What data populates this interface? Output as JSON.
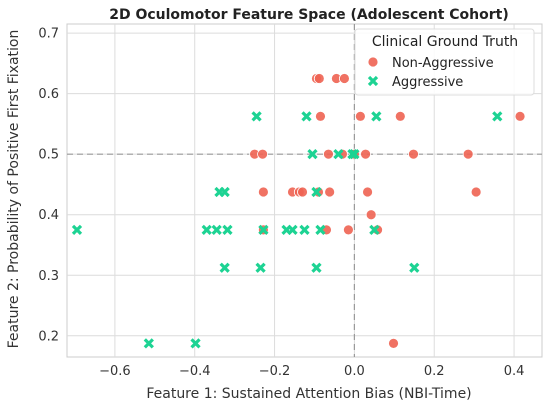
{
  "chart_data": {
    "type": "scatter",
    "title": "2D Oculomotor Feature Space (Adolescent Cohort)",
    "xlabel": "Feature 1: Sustained Attention Bias (NBI-Time)",
    "ylabel": "Feature 2: Probability of Positive First Fixation",
    "xlim": [
      -0.72,
      0.47
    ],
    "ylim": [
      0.165,
      0.715
    ],
    "xticks": [
      -0.6,
      -0.4,
      -0.2,
      0.0,
      0.2,
      0.4
    ],
    "xtick_labels": [
      "−0.6",
      "−0.4",
      "−0.2",
      "0.0",
      "0.2",
      "0.4"
    ],
    "yticks": [
      0.2,
      0.3,
      0.4,
      0.5,
      0.6,
      0.7
    ],
    "ytick_labels": [
      "0.2",
      "0.3",
      "0.4",
      "0.5",
      "0.6",
      "0.7"
    ],
    "grid": true,
    "reference_lines": {
      "x": 0.0,
      "y": 0.5
    },
    "legend": {
      "title": "Clinical Ground Truth",
      "placement": "top-right"
    },
    "series": [
      {
        "name": "Non-Aggressive",
        "marker": "circle",
        "color": "#ee6352",
        "points": [
          [
            -0.095,
            0.625
          ],
          [
            -0.088,
            0.625
          ],
          [
            -0.045,
            0.625
          ],
          [
            -0.025,
            0.625
          ],
          [
            -0.085,
            0.5625
          ],
          [
            0.015,
            0.5625
          ],
          [
            0.115,
            0.5625
          ],
          [
            0.415,
            0.5625
          ],
          [
            -0.25,
            0.5
          ],
          [
            -0.23,
            0.5
          ],
          [
            -0.065,
            0.5
          ],
          [
            -0.03,
            0.5
          ],
          [
            0.0,
            0.5
          ],
          [
            0.028,
            0.5
          ],
          [
            0.148,
            0.5
          ],
          [
            0.285,
            0.5
          ],
          [
            -0.228,
            0.4375
          ],
          [
            -0.155,
            0.4375
          ],
          [
            -0.138,
            0.4375
          ],
          [
            -0.13,
            0.4375
          ],
          [
            -0.09,
            0.4375
          ],
          [
            -0.062,
            0.4375
          ],
          [
            0.033,
            0.4375
          ],
          [
            0.305,
            0.4375
          ],
          [
            0.042,
            0.4
          ],
          [
            -0.228,
            0.375
          ],
          [
            -0.07,
            0.375
          ],
          [
            -0.015,
            0.375
          ],
          [
            0.058,
            0.375
          ],
          [
            0.098,
            0.1875
          ]
        ]
      },
      {
        "name": "Aggressive",
        "marker": "x",
        "color": "#1dd393",
        "points": [
          [
            -0.245,
            0.5625
          ],
          [
            -0.12,
            0.5625
          ],
          [
            0.055,
            0.5625
          ],
          [
            0.358,
            0.5625
          ],
          [
            -0.105,
            0.5
          ],
          [
            -0.04,
            0.5
          ],
          [
            -0.005,
            0.5
          ],
          [
            0.0,
            0.5
          ],
          [
            -0.338,
            0.4375
          ],
          [
            -0.325,
            0.4375
          ],
          [
            -0.095,
            0.4375
          ],
          [
            -0.695,
            0.375
          ],
          [
            -0.37,
            0.375
          ],
          [
            -0.345,
            0.375
          ],
          [
            -0.318,
            0.375
          ],
          [
            -0.228,
            0.375
          ],
          [
            -0.17,
            0.375
          ],
          [
            -0.155,
            0.375
          ],
          [
            -0.125,
            0.375
          ],
          [
            -0.085,
            0.375
          ],
          [
            0.05,
            0.375
          ],
          [
            -0.325,
            0.3125
          ],
          [
            -0.235,
            0.3125
          ],
          [
            -0.095,
            0.3125
          ],
          [
            0.15,
            0.3125
          ],
          [
            -0.515,
            0.1875
          ],
          [
            -0.398,
            0.1875
          ]
        ]
      }
    ]
  }
}
